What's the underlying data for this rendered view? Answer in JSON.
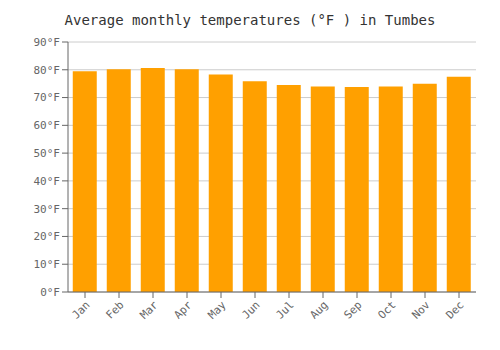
{
  "chart_data": {
    "type": "bar",
    "title": "Average monthly temperatures (°F ) in Tumbes",
    "categories": [
      "Jan",
      "Feb",
      "Mar",
      "Apr",
      "May",
      "Jun",
      "Jul",
      "Aug",
      "Sep",
      "Oct",
      "Nov",
      "Dec"
    ],
    "values": [
      79.5,
      80.2,
      80.6,
      80.2,
      78.3,
      75.9,
      74.5,
      74.0,
      73.8,
      74.0,
      75.0,
      77.5
    ],
    "color": "#FFA000",
    "ylim": [
      0,
      90
    ],
    "yticks": [
      {
        "value": 0,
        "label": "0°F"
      },
      {
        "value": 10,
        "label": "10°F"
      },
      {
        "value": 20,
        "label": "20°F"
      },
      {
        "value": 30,
        "label": "30°F"
      },
      {
        "value": 40,
        "label": "40°F"
      },
      {
        "value": 50,
        "label": "50°F"
      },
      {
        "value": 60,
        "label": "60°F"
      },
      {
        "value": 70,
        "label": "70°F"
      },
      {
        "value": 80,
        "label": "80°F"
      },
      {
        "value": 90,
        "label": "90°F"
      }
    ],
    "grid": true
  }
}
